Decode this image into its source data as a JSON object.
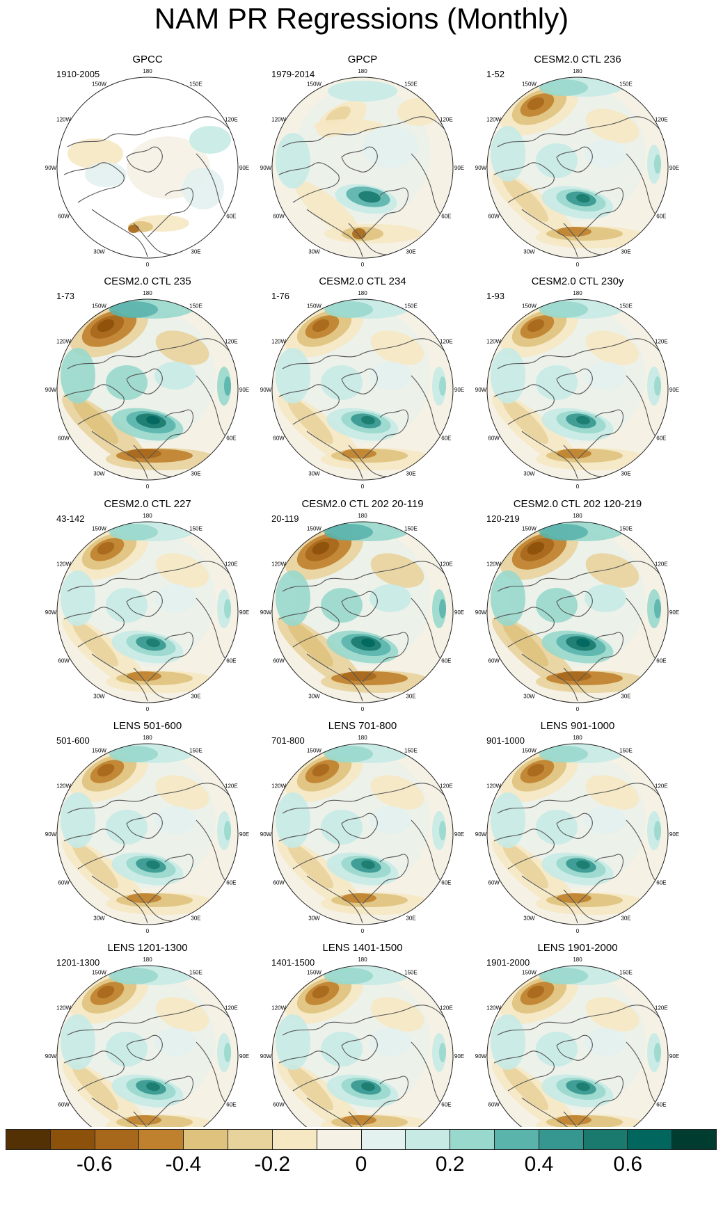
{
  "title": "NAM PR Regressions (Monthly)",
  "lon_labels": [
    "180",
    "150E",
    "120E",
    "90E",
    "60E",
    "30E",
    "0",
    "30W",
    "60W",
    "90W",
    "120W",
    "150W"
  ],
  "panels": [
    {
      "title": "GPCC",
      "period": "1910-2005"
    },
    {
      "title": "GPCP",
      "period": "1979-2014"
    },
    {
      "title": "CESM2.0 CTL 236",
      "period": "1-52"
    },
    {
      "title": "CESM2.0 CTL 235",
      "period": "1-73"
    },
    {
      "title": "CESM2.0 CTL 234",
      "period": "1-76"
    },
    {
      "title": "CESM2.0 CTL 230y",
      "period": "1-93"
    },
    {
      "title": "CESM2.0 CTL 227",
      "period": "43-142"
    },
    {
      "title": "CESM2.0 CTL 202 20-119",
      "period": "20-119"
    },
    {
      "title": "CESM2.0 CTL 202 120-219",
      "period": "120-219"
    },
    {
      "title": "LENS 501-600",
      "period": "501-600"
    },
    {
      "title": "LENS 701-800",
      "period": "701-800"
    },
    {
      "title": "LENS 901-1000",
      "period": "901-1000"
    },
    {
      "title": "LENS 1201-1300",
      "period": "1201-1300"
    },
    {
      "title": "LENS 1401-1500",
      "period": "1401-1500"
    },
    {
      "title": "LENS 1901-2000",
      "period": "1901-2000"
    }
  ],
  "colorbar": {
    "colors": [
      "#543005",
      "#8c510a",
      "#a8681c",
      "#bf812d",
      "#dfc27d",
      "#e9d39c",
      "#f6e8c3",
      "#f5f1e5",
      "#e3f1ef",
      "#c7eae5",
      "#99d8cc",
      "#5ab4ac",
      "#35978f",
      "#1a7a6e",
      "#01665e",
      "#003c30"
    ],
    "labels": [
      "-0.6",
      "-0.4",
      "-0.2",
      "0",
      "0.2",
      "0.4",
      "0.6"
    ]
  },
  "chart_data": {
    "type": "heatmap",
    "projection": "north polar stereographic",
    "variable": "precipitation regression on NAM",
    "title": "NAM PR Regressions (Monthly)",
    "color_levels": [
      -0.7,
      -0.6,
      -0.5,
      -0.4,
      -0.3,
      -0.2,
      -0.1,
      0,
      0.1,
      0.2,
      0.3,
      0.4,
      0.5,
      0.6,
      0.7
    ],
    "tick_labels": [
      "-0.6",
      "-0.4",
      "-0.2",
      "0",
      "0.2",
      "0.4",
      "0.6"
    ]
  }
}
